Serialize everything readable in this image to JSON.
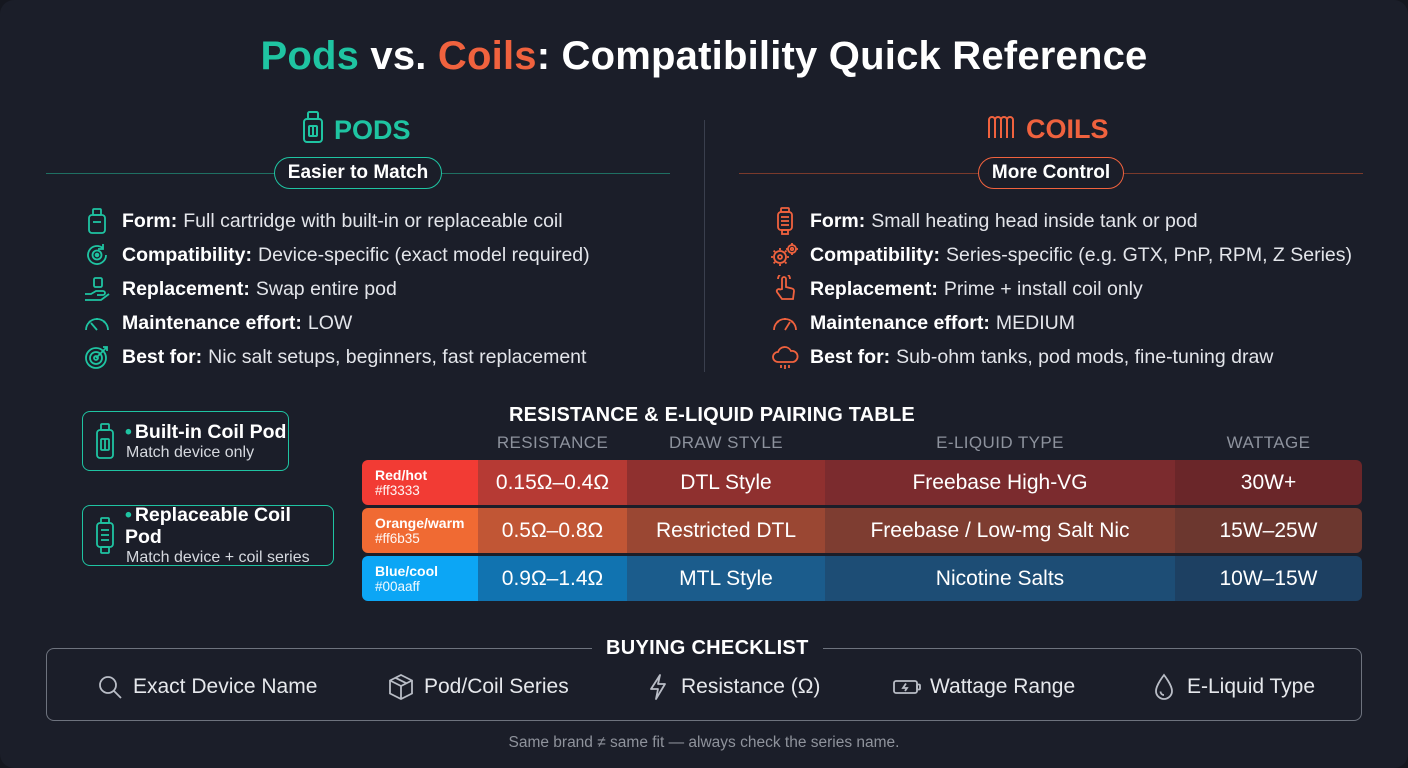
{
  "title": {
    "part1": "Pods",
    "part2": " vs. ",
    "part3": "Coils",
    "part4": ": Compatibility Quick Reference"
  },
  "pods": {
    "heading": "PODS",
    "badge": "Easier to Match",
    "icon": "pod-cartridge-icon",
    "features": [
      {
        "icon": "pod-icon",
        "label": "Form:",
        "text": "Full cartridge with built-in or replaceable coil"
      },
      {
        "icon": "target-sync-icon",
        "label": "Compatibility:",
        "text": "Device-specific (exact model required)"
      },
      {
        "icon": "hand-swap-icon",
        "label": "Replacement:",
        "text": "Swap entire pod"
      },
      {
        "icon": "gauge-low-icon",
        "label": "Maintenance effort:",
        "text": "LOW"
      },
      {
        "icon": "target-icon",
        "label": "Best for:",
        "text": "Nic salt setups, beginners, fast replacement"
      }
    ],
    "cards": [
      {
        "title": "Built-in Coil Pod",
        "sub": "Match device only"
      },
      {
        "title": "Replaceable Coil Pod",
        "sub": "Match device + coil series"
      }
    ]
  },
  "coils": {
    "heading": "COILS",
    "badge": "More Control",
    "icon": "coil-icon",
    "features": [
      {
        "icon": "coil-head-icon",
        "label": "Form:",
        "text": "Small heating head inside tank or pod"
      },
      {
        "icon": "gears-icon",
        "label": "Compatibility:",
        "text": "Series-specific (e.g. GTX, PnP, RPM, Z Series)"
      },
      {
        "icon": "finger-press-icon",
        "label": "Replacement:",
        "text": "Prime + install coil only"
      },
      {
        "icon": "gauge-medium-icon",
        "label": "Maintenance effort:",
        "text": "MEDIUM"
      },
      {
        "icon": "cloud-icon",
        "label": "Best for:",
        "text": "Sub-ohm tanks, pod mods, fine-tuning draw"
      }
    ]
  },
  "table": {
    "title": "RESISTANCE & E-LIQUID PAIRING TABLE",
    "headers": [
      "RESISTANCE",
      "DRAW STYLE",
      "E-LIQUID TYPE",
      "WATTAGE"
    ],
    "rows": [
      {
        "tag": "Red/hot",
        "hex": "#ff3333",
        "resistance": "0.15Ω–0.4Ω",
        "draw": "DTL Style",
        "liquid": "Freebase High-VG",
        "wattage": "30W+"
      },
      {
        "tag": "Orange/warm",
        "hex": "#ff6b35",
        "resistance": "0.5Ω–0.8Ω",
        "draw": "Restricted DTL",
        "liquid": "Freebase / Low-mg Salt Nic",
        "wattage": "15W–25W"
      },
      {
        "tag": "Blue/cool",
        "hex": "#00aaff",
        "resistance": "0.9Ω–1.4Ω",
        "draw": "MTL Style",
        "liquid": "Nicotine Salts",
        "wattage": "10W–15W"
      }
    ]
  },
  "checklist": {
    "title": "BUYING CHECKLIST",
    "items": [
      {
        "icon": "search-icon",
        "label": "Exact Device Name"
      },
      {
        "icon": "box-icon",
        "label": "Pod/Coil Series"
      },
      {
        "icon": "lightning-icon",
        "label": "Resistance (Ω)"
      },
      {
        "icon": "battery-icon",
        "label": "Wattage Range"
      },
      {
        "icon": "droplet-icon",
        "label": "E-Liquid Type"
      }
    ]
  },
  "footnote": "Same brand ≠ same fit — always check the series name.",
  "colors": {
    "green": "#1fc4a2",
    "orange": "#f0623e",
    "background": "#1b1e29"
  }
}
